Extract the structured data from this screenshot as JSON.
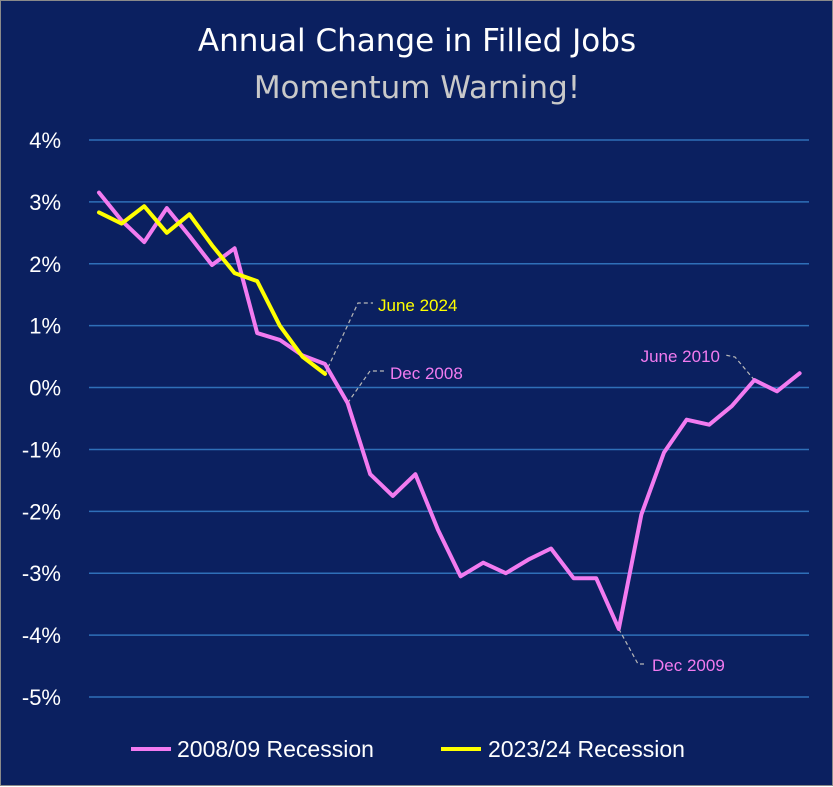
{
  "colors": {
    "background": "#0b2060",
    "gridline": "#2f6fb8",
    "recession_2008": "#f27bf0",
    "recession_2023": "#ffff00",
    "leader": "#b8b8b8",
    "subtitle": "#c9c9c9"
  },
  "chart_data": {
    "type": "line",
    "title": "Annual Change in Filled Jobs",
    "subtitle": "Momentum Warning!",
    "ylim": [
      -5,
      4
    ],
    "yticks": [
      4,
      3,
      2,
      1,
      0,
      -1,
      -2,
      -3,
      -4,
      -5
    ],
    "ytick_labels": [
      "4%",
      "3%",
      "2%",
      "1%",
      "0%",
      "-1%",
      "-2%",
      "-3%",
      "-4%",
      "-5%"
    ],
    "grid": true,
    "legend_position": "bottom",
    "x_points": 32,
    "series": [
      {
        "name": "2008/09 Recession",
        "color": "#f27bf0",
        "values": [
          3.15,
          2.7,
          2.35,
          2.9,
          2.45,
          1.98,
          2.25,
          0.88,
          0.77,
          0.52,
          0.38,
          -0.25,
          -1.4,
          -1.75,
          -1.4,
          -2.3,
          -3.05,
          -2.83,
          -3.0,
          -2.78,
          -2.6,
          -3.08,
          -3.08,
          -3.9,
          -2.05,
          -1.05,
          -0.52,
          -0.6,
          -0.3,
          0.12,
          -0.06,
          0.23
        ]
      },
      {
        "name": "2023/24 Recession",
        "color": "#ffff00",
        "values": [
          2.83,
          2.65,
          2.93,
          2.5,
          2.8,
          2.3,
          1.85,
          1.72,
          1.0,
          0.5,
          0.22
        ]
      }
    ],
    "annotations": [
      {
        "text": "June 2024",
        "series": 1,
        "point": 10,
        "color": "#ffff00"
      },
      {
        "text": "Dec 2008",
        "series": 0,
        "point": 11,
        "color": "#f27bf0"
      },
      {
        "text": "Dec 2009",
        "series": 0,
        "point": 23,
        "color": "#f27bf0"
      },
      {
        "text": "June 2010",
        "series": 0,
        "point": 29,
        "color": "#f27bf0"
      }
    ]
  }
}
